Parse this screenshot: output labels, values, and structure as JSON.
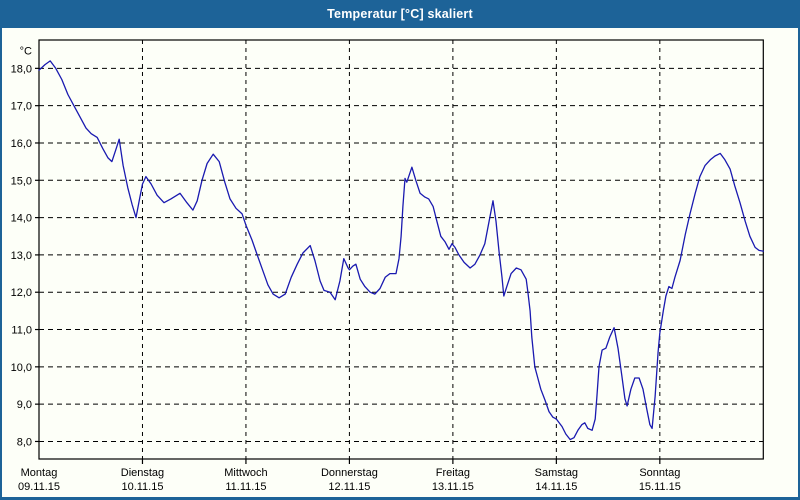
{
  "window": {
    "title": "Temperatur [°C] skaliert"
  },
  "colors": {
    "titlebar": "#1d6398",
    "frame_border": "#1d6398",
    "plot_background": "#fdfff8",
    "grid": "#000000",
    "series_line": "#1a1ab0",
    "label_text": "#000000",
    "title_text": "#ffffff"
  },
  "chart_data": {
    "type": "line",
    "title": "Temperatur [°C] skaliert",
    "ylabel": "°C",
    "unit_label": "°C",
    "grid": "dashed, horizontal at every 1.0 °C and vertical at every day boundary",
    "legend_position": "none",
    "y_ticks": [
      18,
      17,
      16,
      15,
      14,
      13,
      12,
      11,
      10,
      9,
      8
    ],
    "y_tick_labels": [
      "18,0",
      "17,0",
      "16,0",
      "15,0",
      "14,0",
      "13,0",
      "12,0",
      "11,0",
      "10,0",
      "9,0",
      "8,0"
    ],
    "ylim": [
      7.53,
      18.76
    ],
    "x_total_hours": 168,
    "x_days": [
      {
        "name": "Montag",
        "date": "09.11.15"
      },
      {
        "name": "Dienstag",
        "date": "10.11.15"
      },
      {
        "name": "Mittwoch",
        "date": "11.11.15"
      },
      {
        "name": "Donnerstag",
        "date": "12.11.15"
      },
      {
        "name": "Freitag",
        "date": "13.11.15"
      },
      {
        "name": "Samstag",
        "date": "14.11.15"
      },
      {
        "name": "Sonntag",
        "date": "15.11.15"
      }
    ],
    "series": [
      {
        "name": "Temperatur [°C]",
        "color": "#1a1ab0",
        "points_hours_degc": [
          [
            0,
            17.95
          ],
          [
            1.4,
            18.1
          ],
          [
            2.6,
            18.2
          ],
          [
            3.9,
            18.0
          ],
          [
            5.3,
            17.7
          ],
          [
            6.7,
            17.3
          ],
          [
            8.1,
            17.0
          ],
          [
            9.5,
            16.7
          ],
          [
            10.9,
            16.4
          ],
          [
            12.1,
            16.25
          ],
          [
            13.5,
            16.15
          ],
          [
            14.8,
            15.85
          ],
          [
            16,
            15.6
          ],
          [
            16.9,
            15.5
          ],
          [
            17.9,
            15.85
          ],
          [
            18.6,
            16.1
          ],
          [
            19.5,
            15.4
          ],
          [
            20.6,
            14.8
          ],
          [
            21.6,
            14.35
          ],
          [
            22.5,
            14.0
          ],
          [
            23.4,
            14.55
          ],
          [
            24,
            14.9
          ],
          [
            24.8,
            15.1
          ],
          [
            26,
            14.9
          ],
          [
            27.4,
            14.6
          ],
          [
            29,
            14.4
          ],
          [
            30.6,
            14.5
          ],
          [
            32.7,
            14.65
          ],
          [
            34.3,
            14.4
          ],
          [
            35.7,
            14.2
          ],
          [
            36.7,
            14.45
          ],
          [
            37.8,
            15.0
          ],
          [
            39,
            15.45
          ],
          [
            40.4,
            15.7
          ],
          [
            41.8,
            15.5
          ],
          [
            43.1,
            14.95
          ],
          [
            44.3,
            14.5
          ],
          [
            45.7,
            14.25
          ],
          [
            47.1,
            14.1
          ],
          [
            48,
            13.8
          ],
          [
            49.4,
            13.4
          ],
          [
            50.6,
            13.0
          ],
          [
            52,
            12.55
          ],
          [
            53.1,
            12.2
          ],
          [
            54.3,
            11.95
          ],
          [
            55.7,
            11.85
          ],
          [
            57.1,
            11.95
          ],
          [
            58.5,
            12.4
          ],
          [
            59.9,
            12.75
          ],
          [
            61.2,
            13.05
          ],
          [
            62.9,
            13.25
          ],
          [
            64,
            12.85
          ],
          [
            65.2,
            12.3
          ],
          [
            66.1,
            12.05
          ],
          [
            67.5,
            12.0
          ],
          [
            68.7,
            11.8
          ],
          [
            69.8,
            12.3
          ],
          [
            70.7,
            12.9
          ],
          [
            71.7,
            12.65
          ],
          [
            72,
            12.6
          ],
          [
            72.8,
            12.7
          ],
          [
            73.5,
            12.75
          ],
          [
            74.5,
            12.35
          ],
          [
            75.6,
            12.15
          ],
          [
            76.8,
            12.0
          ],
          [
            77.9,
            11.95
          ],
          [
            79.1,
            12.1
          ],
          [
            80.3,
            12.4
          ],
          [
            81.4,
            12.5
          ],
          [
            82.8,
            12.5
          ],
          [
            83.5,
            12.9
          ],
          [
            84,
            13.5
          ],
          [
            84.4,
            14.3
          ],
          [
            84.9,
            15.05
          ],
          [
            85.3,
            14.95
          ],
          [
            86.5,
            15.35
          ],
          [
            87.4,
            15.0
          ],
          [
            88.4,
            14.65
          ],
          [
            89.5,
            14.55
          ],
          [
            90.4,
            14.5
          ],
          [
            91.4,
            14.3
          ],
          [
            92.3,
            13.9
          ],
          [
            93.2,
            13.5
          ],
          [
            94.2,
            13.35
          ],
          [
            95.1,
            13.15
          ],
          [
            95.8,
            13.3
          ],
          [
            96.5,
            13.2
          ],
          [
            97.4,
            13.0
          ],
          [
            98.6,
            12.8
          ],
          [
            100,
            12.65
          ],
          [
            101.1,
            12.75
          ],
          [
            102.3,
            13.0
          ],
          [
            103.4,
            13.3
          ],
          [
            104.4,
            13.9
          ],
          [
            105.3,
            14.45
          ],
          [
            106,
            13.9
          ],
          [
            106.7,
            13.1
          ],
          [
            107.4,
            12.4
          ],
          [
            107.8,
            11.9
          ],
          [
            108.5,
            12.15
          ],
          [
            109.5,
            12.5
          ],
          [
            110.7,
            12.65
          ],
          [
            111.8,
            12.6
          ],
          [
            113,
            12.35
          ],
          [
            113.4,
            12.0
          ],
          [
            113.9,
            11.5
          ],
          [
            114.3,
            10.8
          ],
          [
            115,
            10.0
          ],
          [
            115.7,
            9.7
          ],
          [
            116.4,
            9.4
          ],
          [
            117.4,
            9.1
          ],
          [
            118.3,
            8.8
          ],
          [
            119.2,
            8.65
          ],
          [
            120,
            8.6
          ],
          [
            121.3,
            8.4
          ],
          [
            122.2,
            8.2
          ],
          [
            123.2,
            8.05
          ],
          [
            124.1,
            8.1
          ],
          [
            125,
            8.3
          ],
          [
            125.9,
            8.45
          ],
          [
            126.6,
            8.5
          ],
          [
            127.3,
            8.35
          ],
          [
            128.3,
            8.3
          ],
          [
            129,
            8.6
          ],
          [
            129.4,
            9.2
          ],
          [
            129.9,
            10.0
          ],
          [
            130.6,
            10.45
          ],
          [
            131.5,
            10.5
          ],
          [
            132.4,
            10.8
          ],
          [
            133.4,
            11.05
          ],
          [
            134.3,
            10.5
          ],
          [
            135.2,
            9.75
          ],
          [
            135.9,
            9.15
          ],
          [
            136.4,
            8.95
          ],
          [
            137.3,
            9.4
          ],
          [
            138.2,
            9.7
          ],
          [
            139.2,
            9.7
          ],
          [
            140.1,
            9.4
          ],
          [
            141,
            8.85
          ],
          [
            141.7,
            8.45
          ],
          [
            142.2,
            8.35
          ],
          [
            142.9,
            9.2
          ],
          [
            143.6,
            10.4
          ],
          [
            144,
            10.9
          ],
          [
            144.8,
            11.5
          ],
          [
            145.4,
            11.9
          ],
          [
            146.1,
            12.15
          ],
          [
            146.8,
            12.1
          ],
          [
            147.5,
            12.4
          ],
          [
            148.7,
            12.85
          ],
          [
            149.9,
            13.55
          ],
          [
            151,
            14.1
          ],
          [
            152.2,
            14.65
          ],
          [
            153.3,
            15.1
          ],
          [
            154.5,
            15.4
          ],
          [
            155.7,
            15.55
          ],
          [
            156.8,
            15.65
          ],
          [
            158,
            15.72
          ],
          [
            159.1,
            15.55
          ],
          [
            160.3,
            15.3
          ],
          [
            161.4,
            14.85
          ],
          [
            162.6,
            14.4
          ],
          [
            163.8,
            13.9
          ],
          [
            164.9,
            13.5
          ],
          [
            166.1,
            13.2
          ],
          [
            167,
            13.12
          ],
          [
            168,
            13.1
          ]
        ]
      }
    ]
  }
}
